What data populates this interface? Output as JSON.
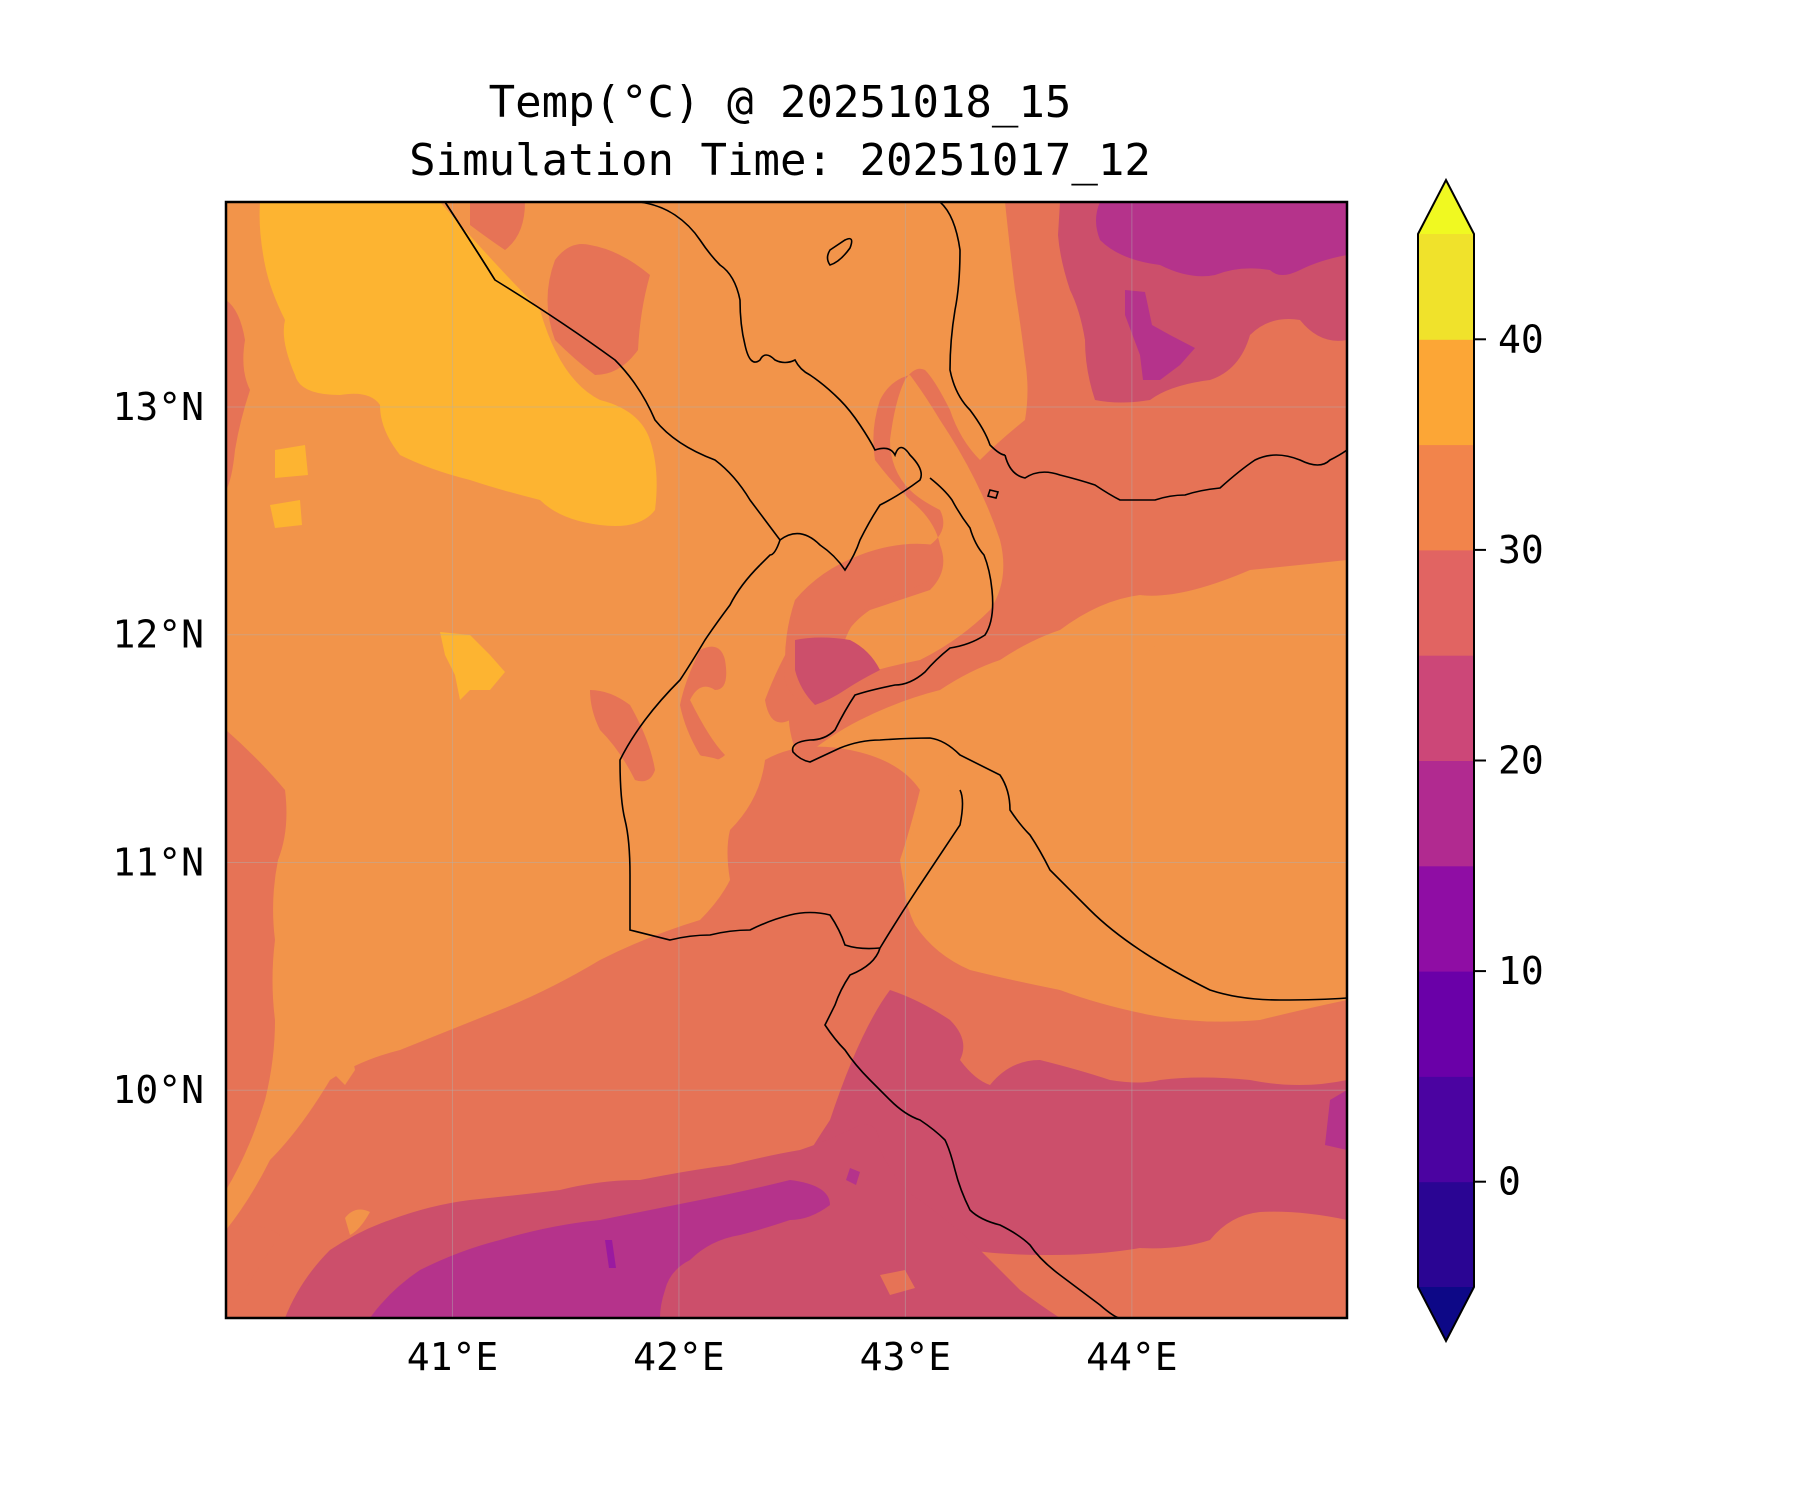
{
  "title": {
    "line1": "Temp(°C) @ 20251018_15",
    "line2": "Simulation Time: 20251017_12"
  },
  "map": {
    "lon_range": [
      40.0,
      44.95
    ],
    "lat_range": [
      9.0,
      13.9
    ],
    "lon_ticks": [
      {
        "value": 41,
        "label": "41°E"
      },
      {
        "value": 42,
        "label": "42°E"
      },
      {
        "value": 43,
        "label": "43°E"
      },
      {
        "value": 44,
        "label": "44°E"
      }
    ],
    "lat_ticks": [
      {
        "value": 13,
        "label": "13°N"
      },
      {
        "value": 12,
        "label": "12°N"
      },
      {
        "value": 11,
        "label": "11°N"
      },
      {
        "value": 10,
        "label": "10°N"
      }
    ],
    "gridlines": true,
    "layers": [
      "filled-temperature-contours",
      "coastlines",
      "country-borders"
    ]
  },
  "colorbar": {
    "levels": [
      -5,
      0,
      5,
      10,
      15,
      20,
      25,
      30,
      35,
      40,
      45
    ],
    "extend": "both",
    "under_color": "#0d0887",
    "over_color": "#f0f921",
    "colors": [
      "#2a0593",
      "#4b03a1",
      "#6a00a8",
      "#8f0da4",
      "#b12a90",
      "#cc4778",
      "#e16462",
      "#f2844b",
      "#fca636",
      "#f0e22b"
    ],
    "ticks": [
      {
        "value": 0,
        "label": "0"
      },
      {
        "value": 10,
        "label": "10"
      },
      {
        "value": 20,
        "label": "20"
      },
      {
        "value": 30,
        "label": "30"
      },
      {
        "value": 40,
        "label": "40"
      }
    ]
  }
}
